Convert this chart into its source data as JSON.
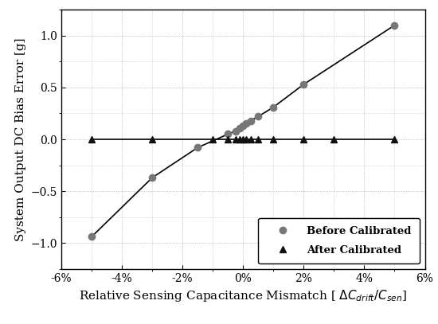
{
  "before_x": [
    -5,
    -3,
    -1.5,
    -0.5,
    -0.25,
    -0.1,
    0,
    0.1,
    0.25,
    0.5,
    1,
    2,
    5
  ],
  "before_y": [
    -0.94,
    -0.37,
    -0.08,
    0.05,
    0.08,
    0.11,
    0.13,
    0.15,
    0.18,
    0.22,
    0.31,
    0.53,
    1.1
  ],
  "after_x": [
    -5,
    -3,
    -1,
    -0.5,
    -0.25,
    -0.1,
    0,
    0.1,
    0.25,
    0.5,
    1,
    2,
    3,
    5
  ],
  "after_y": [
    0.0,
    0.0,
    0.0,
    0.0,
    0.0,
    0.0,
    0.0,
    0.0,
    0.0,
    0.0,
    0.0,
    0.0,
    0.0,
    0.0
  ],
  "before_color": "#777777",
  "after_color": "#111111",
  "line_color": "#000000",
  "xlabel": "Relative Sensing Capacitance Mismatch [ $\\Delta C_{drift}/C_{sen}$]",
  "ylabel": "System Output DC Bias Error [g]",
  "xlim": [
    -6,
    6
  ],
  "ylim": [
    -1.25,
    1.25
  ],
  "xticks": [
    -6,
    -4,
    -2,
    0,
    2,
    4,
    6
  ],
  "yticks": [
    -1.0,
    -0.5,
    0,
    0.5,
    1.0
  ],
  "legend_before": "Before Calibrated",
  "legend_after": "After Calibrated",
  "grid_color": "#aaaaaa",
  "background_color": "#ffffff",
  "tick_label_fontsize": 10,
  "axis_label_fontsize": 11
}
